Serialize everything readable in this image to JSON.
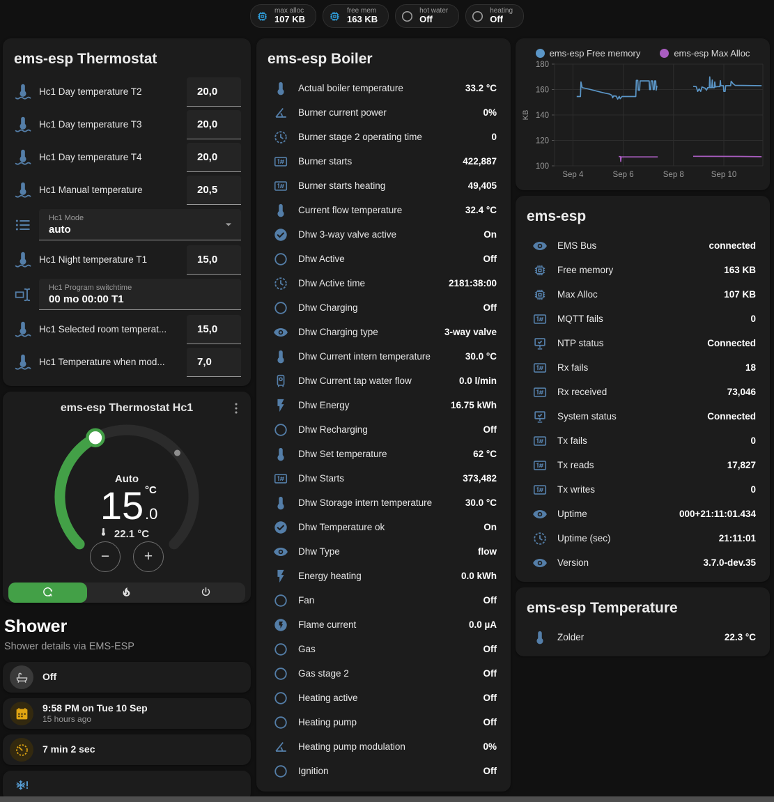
{
  "chips": [
    {
      "icon": "chip",
      "cls": "blue",
      "label": "max alloc",
      "value": "107 KB"
    },
    {
      "icon": "chip",
      "cls": "blue",
      "label": "free mem",
      "value": "163 KB"
    },
    {
      "icon": "circle",
      "cls": "gray",
      "label": "hot water",
      "value": "Off"
    },
    {
      "icon": "circle",
      "cls": "gray",
      "label": "heating",
      "value": "Off"
    }
  ],
  "thermostat_card": {
    "title": "ems-esp Thermostat",
    "rows": [
      {
        "kind": "number",
        "icon": "thermometer-water",
        "label": "Hc1 Day temperature T2",
        "value": "20,0"
      },
      {
        "kind": "number",
        "icon": "thermometer-water",
        "label": "Hc1 Day temperature T3",
        "value": "20,0"
      },
      {
        "kind": "number",
        "icon": "thermometer-water",
        "label": "Hc1 Day temperature T4",
        "value": "20,0"
      },
      {
        "kind": "number",
        "icon": "thermometer-water",
        "label": "Hc1 Manual temperature",
        "value": "20,5"
      },
      {
        "kind": "select",
        "icon": "format-list",
        "label": "Hc1 Mode",
        "value": "auto"
      },
      {
        "kind": "number",
        "icon": "thermometer-water",
        "label": "Hc1 Night temperature T1",
        "value": "15,0"
      },
      {
        "kind": "text",
        "icon": "form-textbox",
        "label": "Hc1 Program switchtime",
        "value": "00 mo 00:00 T1"
      },
      {
        "kind": "number",
        "icon": "thermometer-water",
        "label": "Hc1 Selected room temperat...",
        "value": "15,0"
      },
      {
        "kind": "number",
        "icon": "thermometer-water",
        "label": "Hc1 Temperature when mod...",
        "value": "7,0"
      }
    ]
  },
  "dial_card": {
    "title": "ems-esp Thermostat Hc1",
    "mode_label": "Auto",
    "target_whole": "15",
    "target_fraction": ".0",
    "unit": "°C",
    "current_temperature": "22.1 °C",
    "decrease_label": "−",
    "increase_label": "+",
    "modes": [
      {
        "icon": "thermostat-auto",
        "cls": "active"
      },
      {
        "icon": "fire"
      },
      {
        "icon": "power"
      }
    ]
  },
  "shower": {
    "title": "Shower",
    "subtitle": "Shower details via EMS-ESP",
    "items": [
      {
        "kind": "state",
        "cls": "gray",
        "icon": "bathtub",
        "value": "Off"
      },
      {
        "kind": "two",
        "cls": "amber",
        "icon": "calendar",
        "value": "9:58 PM on Tue 10 Sep",
        "sub": "15 hours ago"
      },
      {
        "kind": "state",
        "cls": "amber",
        "icon": "timer",
        "value": "7 min 2 sec"
      },
      {
        "kind": "center",
        "cls": "lightblue",
        "icon": "snowflake-alert"
      }
    ]
  },
  "boiler_card": {
    "title": "ems-esp Boiler",
    "rows": [
      {
        "icon": "thermometer",
        "label": "Actual boiler temperature",
        "value": "33.2 °C"
      },
      {
        "icon": "angle",
        "label": "Burner current power",
        "value": "0%"
      },
      {
        "icon": "clock",
        "label": "Burner stage 2 operating time",
        "value": "0"
      },
      {
        "icon": "counter",
        "label": "Burner starts",
        "value": "422,887"
      },
      {
        "icon": "counter",
        "label": "Burner starts heating",
        "value": "49,405"
      },
      {
        "icon": "thermometer",
        "label": "Current flow temperature",
        "value": "32.4 °C"
      },
      {
        "icon": "check-circle",
        "label": "Dhw 3-way valve active",
        "value": "On"
      },
      {
        "icon": "circle",
        "label": "Dhw Active",
        "value": "Off"
      },
      {
        "icon": "clock",
        "label": "Dhw Active time",
        "value": "2181:38:00"
      },
      {
        "icon": "circle",
        "label": "Dhw Charging",
        "value": "Off"
      },
      {
        "icon": "eye",
        "label": "Dhw Charging type",
        "value": "3-way valve"
      },
      {
        "icon": "thermometer",
        "label": "Dhw Current intern temperature",
        "value": "30.0 °C"
      },
      {
        "icon": "water-boiler",
        "label": "Dhw Current tap water flow",
        "value": "0.0 l/min"
      },
      {
        "icon": "flash",
        "label": "Dhw Energy",
        "value": "16.75 kWh"
      },
      {
        "icon": "circle",
        "label": "Dhw Recharging",
        "value": "Off"
      },
      {
        "icon": "thermometer",
        "label": "Dhw Set temperature",
        "value": "62 °C"
      },
      {
        "icon": "counter",
        "label": "Dhw Starts",
        "value": "373,482"
      },
      {
        "icon": "thermometer",
        "label": "Dhw Storage intern temperature",
        "value": "30.0 °C"
      },
      {
        "icon": "check-circle",
        "label": "Dhw Temperature ok",
        "value": "On"
      },
      {
        "icon": "eye",
        "label": "Dhw Type",
        "value": "flow"
      },
      {
        "icon": "flash",
        "label": "Energy heating",
        "value": "0.0 kWh"
      },
      {
        "icon": "circle",
        "label": "Fan",
        "value": "Off"
      },
      {
        "icon": "flash-circle",
        "label": "Flame current",
        "value": "0.0 µA"
      },
      {
        "icon": "circle",
        "label": "Gas",
        "value": "Off"
      },
      {
        "icon": "circle",
        "label": "Gas stage 2",
        "value": "Off"
      },
      {
        "icon": "circle",
        "label": "Heating active",
        "value": "Off"
      },
      {
        "icon": "circle",
        "label": "Heating pump",
        "value": "Off"
      },
      {
        "icon": "angle",
        "label": "Heating pump modulation",
        "value": "0%"
      },
      {
        "icon": "circle",
        "label": "Ignition",
        "value": "Off"
      }
    ]
  },
  "chart_data": {
    "type": "line",
    "ylabel": "KB",
    "ylim": [
      100,
      180
    ],
    "xlim": [
      3.27,
      11.55
    ],
    "grid": true,
    "legend_position": "top",
    "y_ticks": [
      100,
      120,
      140,
      160,
      180
    ],
    "x_ticks": [
      {
        "v": 4,
        "label": "Sep 4"
      },
      {
        "v": 6,
        "label": "Sep 6"
      },
      {
        "v": 8,
        "label": "Sep 8"
      },
      {
        "v": 10,
        "label": "Sep 10"
      }
    ],
    "series": [
      {
        "name": "ems-esp Free memory",
        "color": "#5b96c7",
        "points": [
          [
            4.15,
            154.5
          ],
          [
            4.3,
            154.5
          ],
          [
            4.32,
            166
          ],
          [
            4.37,
            161.5
          ],
          [
            4.6,
            160.5
          ],
          [
            4.9,
            159
          ],
          [
            5.2,
            157.5
          ],
          [
            5.45,
            156.5
          ],
          [
            5.55,
            155.5
          ],
          [
            5.58,
            153.5
          ],
          [
            5.62,
            155
          ],
          [
            5.72,
            154.8
          ],
          [
            5.78,
            152.5
          ],
          [
            5.84,
            154.6
          ],
          [
            5.88,
            152.8
          ],
          [
            5.95,
            154.5
          ],
          [
            6.5,
            154.5
          ],
          [
            6.52,
            167.2
          ],
          [
            6.58,
            167.2
          ],
          [
            6.6,
            159.5
          ],
          [
            6.65,
            159.5
          ],
          [
            6.67,
            166.8
          ],
          [
            7.03,
            166.8
          ],
          [
            7.05,
            160
          ],
          [
            7.09,
            160
          ],
          [
            7.11,
            166.8
          ],
          [
            7.17,
            166.8
          ],
          [
            7.19,
            160
          ],
          [
            7.23,
            160
          ],
          [
            7.25,
            166.8
          ],
          [
            7.29,
            166.8
          ],
          [
            7.31,
            159.5
          ],
          [
            7.34,
            163
          ],
          null,
          [
            8.78,
            162.5
          ],
          [
            8.9,
            162.3
          ],
          [
            8.96,
            158.5
          ],
          [
            9.02,
            160.5
          ],
          [
            9.08,
            158.5
          ],
          [
            9.13,
            162
          ],
          [
            9.26,
            161
          ],
          [
            9.31,
            159.5
          ],
          [
            9.36,
            161.5
          ],
          [
            9.42,
            161.5
          ],
          [
            9.44,
            170
          ],
          [
            9.46,
            161.5
          ],
          [
            9.52,
            161.5
          ],
          [
            9.54,
            167.5
          ],
          [
            9.56,
            161.5
          ],
          [
            9.62,
            161.5
          ],
          [
            9.64,
            166
          ],
          [
            9.66,
            162
          ],
          [
            9.74,
            162.3
          ],
          [
            9.84,
            162.3
          ],
          [
            9.86,
            167
          ],
          [
            9.88,
            163
          ],
          [
            9.98,
            163
          ],
          [
            10.0,
            158.5
          ],
          [
            10.05,
            158.5
          ],
          [
            10.07,
            163
          ],
          [
            10.27,
            163
          ],
          [
            10.29,
            166.5
          ],
          [
            10.37,
            164.5
          ],
          [
            10.45,
            163.3
          ],
          [
            11.5,
            163
          ]
        ]
      },
      {
        "name": "ems-esp Max Alloc",
        "color": "#a95dc0",
        "points": [
          [
            5.82,
            107.3
          ],
          [
            5.89,
            107.3
          ],
          [
            5.9,
            103.5
          ],
          [
            5.92,
            107
          ],
          [
            7.37,
            107
          ],
          null,
          [
            8.78,
            107.5
          ],
          [
            10.6,
            107.4
          ],
          [
            11.5,
            107.2
          ]
        ]
      }
    ]
  },
  "emsesp_card": {
    "title": "ems-esp",
    "rows": [
      {
        "icon": "eye",
        "label": "EMS Bus",
        "value": "connected"
      },
      {
        "icon": "chip",
        "label": "Free memory",
        "value": "163 KB"
      },
      {
        "icon": "chip",
        "label": "Max Alloc",
        "value": "107 KB"
      },
      {
        "icon": "counter",
        "label": "MQTT fails",
        "value": "0"
      },
      {
        "icon": "network",
        "label": "NTP status",
        "value": "Connected"
      },
      {
        "icon": "counter",
        "label": "Rx fails",
        "value": "18"
      },
      {
        "icon": "counter",
        "label": "Rx received",
        "value": "73,046"
      },
      {
        "icon": "network",
        "label": "System status",
        "value": "Connected"
      },
      {
        "icon": "counter",
        "label": "Tx fails",
        "value": "0"
      },
      {
        "icon": "counter",
        "label": "Tx reads",
        "value": "17,827"
      },
      {
        "icon": "counter",
        "label": "Tx writes",
        "value": "0"
      },
      {
        "icon": "eye",
        "label": "Uptime",
        "value": "000+21:11:01.434"
      },
      {
        "icon": "clock",
        "label": "Uptime (sec)",
        "value": "21:11:01"
      },
      {
        "icon": "eye",
        "label": "Version",
        "value": "3.7.0-dev.35"
      }
    ]
  },
  "temperature_card": {
    "title": "ems-esp Temperature",
    "rows": [
      {
        "icon": "thermometer",
        "label": "Zolder",
        "value": "22.3 °C"
      }
    ]
  },
  "colors": {
    "background": "#111111",
    "card": "#1c1c1c",
    "icon_blue": "#547ea8",
    "accent_green": "#43a047",
    "chart_blue": "#5b96c7",
    "chart_purple": "#a95dc0",
    "amber": "#e0a512"
  }
}
